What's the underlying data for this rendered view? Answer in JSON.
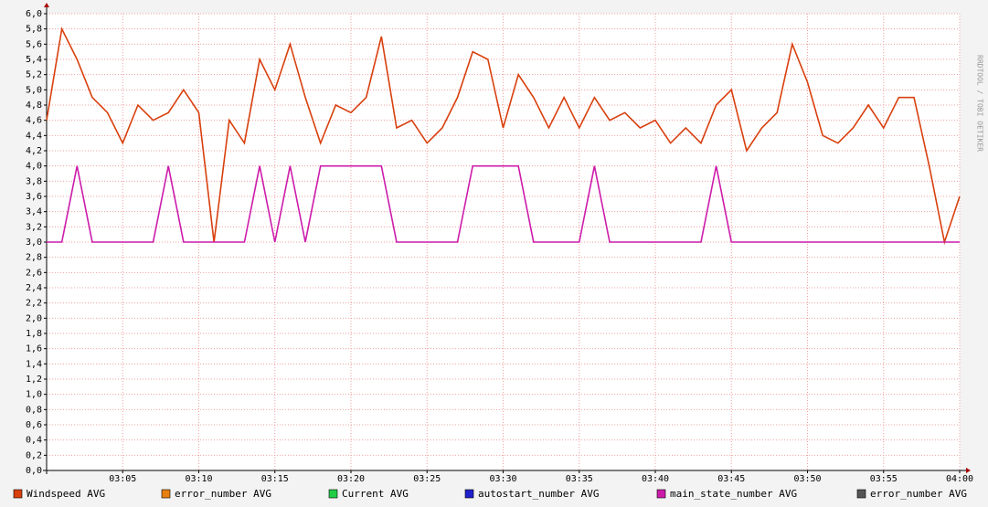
{
  "chart_data": {
    "type": "line",
    "watermark": "RRDTOOL / TOBI OETIKER",
    "x": [
      "03:00",
      "03:01",
      "03:02",
      "03:03",
      "03:04",
      "03:05",
      "03:06",
      "03:07",
      "03:08",
      "03:09",
      "03:10",
      "03:11",
      "03:12",
      "03:13",
      "03:14",
      "03:15",
      "03:16",
      "03:17",
      "03:18",
      "03:19",
      "03:20",
      "03:21",
      "03:22",
      "03:23",
      "03:24",
      "03:25",
      "03:26",
      "03:27",
      "03:28",
      "03:29",
      "03:30",
      "03:31",
      "03:32",
      "03:33",
      "03:34",
      "03:35",
      "03:36",
      "03:37",
      "03:38",
      "03:39",
      "03:40",
      "03:41",
      "03:42",
      "03:43",
      "03:44",
      "03:45",
      "03:46",
      "03:47",
      "03:48",
      "03:49",
      "03:50",
      "03:51",
      "03:52",
      "03:53",
      "03:54",
      "03:55",
      "03:56",
      "03:57",
      "03:58",
      "03:59",
      "04:00"
    ],
    "series": [
      {
        "name": "Windspeed AVG",
        "color": "#d8400e",
        "values": [
          4.6,
          5.8,
          5.4,
          4.9,
          4.7,
          4.3,
          4.8,
          4.6,
          4.7,
          5.0,
          4.7,
          3.0,
          4.6,
          4.3,
          5.4,
          5.0,
          5.6,
          4.9,
          4.3,
          4.8,
          4.7,
          4.9,
          5.7,
          4.5,
          4.6,
          4.3,
          4.5,
          4.9,
          5.5,
          5.4,
          4.5,
          5.2,
          4.9,
          4.5,
          4.9,
          4.5,
          4.9,
          4.6,
          4.7,
          4.5,
          4.6,
          4.3,
          4.5,
          4.3,
          4.8,
          5.0,
          4.2,
          4.5,
          4.7,
          5.6,
          5.1,
          4.4,
          4.3,
          4.5,
          4.8,
          4.5,
          4.9,
          4.9,
          4.0,
          3.0,
          3.6
        ]
      },
      {
        "name": "error_number AVG",
        "color": "#e8800e"
      },
      {
        "name": "Current AVG",
        "color": "#22cc44"
      },
      {
        "name": "autostart_number AVG",
        "color": "#2020cc"
      },
      {
        "name": "main_state_number AVG",
        "color": "#cc1caa",
        "values": [
          3,
          3,
          4,
          3,
          3,
          3,
          3,
          3,
          4,
          3,
          3,
          3,
          3,
          3,
          4,
          3,
          4,
          3,
          4,
          4,
          4,
          4,
          4,
          3,
          3,
          3,
          3,
          3,
          4,
          4,
          4,
          4,
          3,
          3,
          3,
          3,
          4,
          3,
          3,
          3,
          3,
          3,
          3,
          3,
          4,
          3,
          3,
          3,
          3,
          3,
          3,
          3,
          3,
          3,
          3,
          3,
          3,
          3,
          3,
          3,
          3
        ]
      },
      {
        "name": "error_number AVG",
        "color": "#555555"
      }
    ],
    "xlim": [
      "03:00",
      "04:00"
    ],
    "xticks": [
      "03:05",
      "03:10",
      "03:15",
      "03:20",
      "03:25",
      "03:30",
      "03:35",
      "03:40",
      "03:45",
      "03:50",
      "03:55",
      "04:00"
    ],
    "ylim": [
      0,
      6
    ],
    "yticks": [
      {
        "value": 0,
        "label": "0,0"
      },
      {
        "value": 0.2,
        "label": "0,2"
      },
      {
        "value": 0.4,
        "label": "0,4"
      },
      {
        "value": 0.6,
        "label": "0,6"
      },
      {
        "value": 0.8,
        "label": "0,8"
      },
      {
        "value": 1,
        "label": "1,0"
      },
      {
        "value": 1.2,
        "label": "1,2"
      },
      {
        "value": 1.4,
        "label": "1,4"
      },
      {
        "value": 1.6,
        "label": "1,6"
      },
      {
        "value": 1.8,
        "label": "1,8"
      },
      {
        "value": 2,
        "label": "2,0"
      },
      {
        "value": 2.2,
        "label": "2,2"
      },
      {
        "value": 2.4,
        "label": "2,4"
      },
      {
        "value": 2.6,
        "label": "2,6"
      },
      {
        "value": 2.8,
        "label": "2,8"
      },
      {
        "value": 3,
        "label": "3,0"
      },
      {
        "value": 3.2,
        "label": "3,2"
      },
      {
        "value": 3.4,
        "label": "3,4"
      },
      {
        "value": 3.6,
        "label": "3,6"
      },
      {
        "value": 3.8,
        "label": "3,8"
      },
      {
        "value": 4,
        "label": "4,0"
      },
      {
        "value": 4.2,
        "label": "4,2"
      },
      {
        "value": 4.4,
        "label": "4,4"
      },
      {
        "value": 4.6,
        "label": "4,6"
      },
      {
        "value": 4.8,
        "label": "4,8"
      },
      {
        "value": 5,
        "label": "5,0"
      },
      {
        "value": 5.2,
        "label": "5,2"
      },
      {
        "value": 5.4,
        "label": "5,4"
      },
      {
        "value": 5.6,
        "label": "5,6"
      },
      {
        "value": 5.8,
        "label": "5,8"
      },
      {
        "value": 6,
        "label": "6,0"
      }
    ],
    "grid": true
  }
}
